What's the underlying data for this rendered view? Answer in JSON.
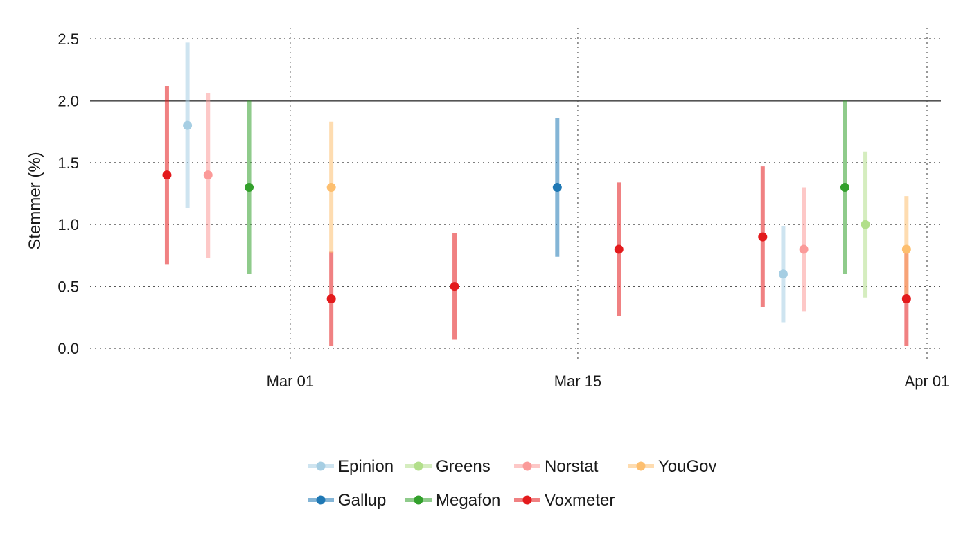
{
  "chart_data": {
    "type": "scatter",
    "ylabel": "Stemmer (%)",
    "xlabel": "",
    "ylim": [
      -0.05,
      2.55
    ],
    "xlim": [
      "2024-02-21",
      "2024-04-01"
    ],
    "yticks": [
      0.0,
      0.5,
      1.0,
      1.5,
      2.0,
      2.5
    ],
    "ytick_labels": [
      "0.0",
      "0.5",
      "1.0",
      "1.5",
      "2.0",
      "2.5"
    ],
    "xticks": [
      "2024-03-01",
      "2024-03-15",
      "2024-04-01"
    ],
    "xtick_labels": [
      "Mar 01",
      "Mar 15",
      "Apr 01"
    ],
    "grid": "dotted",
    "threshold": 2.0,
    "legend_position": "bottom",
    "series": [
      {
        "name": "Epinion",
        "color": "#a6cee3",
        "points": [
          {
            "date": "2024-02-25",
            "value": 1.8,
            "low": 1.13,
            "high": 2.47
          },
          {
            "date": "2024-03-25",
            "value": 0.6,
            "low": 0.21,
            "high": 0.99
          }
        ]
      },
      {
        "name": "Gallup",
        "color": "#1f78b4",
        "points": [
          {
            "date": "2024-03-14",
            "value": 1.3,
            "low": 0.74,
            "high": 1.86
          }
        ]
      },
      {
        "name": "Greens",
        "color": "#b2df8a",
        "points": [
          {
            "date": "2024-03-29",
            "value": 1.0,
            "low": 0.41,
            "high": 1.59
          }
        ]
      },
      {
        "name": "Megafon",
        "color": "#33a02c",
        "points": [
          {
            "date": "2024-02-28",
            "value": 1.3,
            "low": 0.6,
            "high": 2.0
          },
          {
            "date": "2024-03-28",
            "value": 1.3,
            "low": 0.6,
            "high": 2.0
          }
        ]
      },
      {
        "name": "Norstat",
        "color": "#fb9a99",
        "points": [
          {
            "date": "2024-02-26",
            "value": 1.4,
            "low": 0.73,
            "high": 2.06
          },
          {
            "date": "2024-03-26",
            "value": 0.8,
            "low": 0.3,
            "high": 1.3
          }
        ]
      },
      {
        "name": "Voxmeter",
        "color": "#e31a1c",
        "points": [
          {
            "date": "2024-02-24",
            "value": 1.4,
            "low": 0.68,
            "high": 2.12
          },
          {
            "date": "2024-03-03",
            "value": 0.4,
            "low": 0.02,
            "high": 0.78
          },
          {
            "date": "2024-03-09",
            "value": 0.5,
            "low": 0.07,
            "high": 0.93
          },
          {
            "date": "2024-03-17",
            "value": 0.8,
            "low": 0.26,
            "high": 1.34
          },
          {
            "date": "2024-03-24",
            "value": 0.9,
            "low": 0.33,
            "high": 1.47
          },
          {
            "date": "2024-03-31",
            "value": 0.4,
            "low": 0.02,
            "high": 0.78
          }
        ]
      },
      {
        "name": "YouGov",
        "color": "#fdbf6f",
        "points": [
          {
            "date": "2024-03-03",
            "value": 1.3,
            "low": 0.77,
            "high": 1.83
          },
          {
            "date": "2024-03-31",
            "value": 0.8,
            "low": 0.37,
            "high": 1.23
          }
        ]
      }
    ],
    "legend_rows": [
      [
        "Epinion",
        "Greens",
        "Norstat",
        "YouGov"
      ],
      [
        "Gallup",
        "Megafon",
        "Voxmeter"
      ]
    ]
  }
}
